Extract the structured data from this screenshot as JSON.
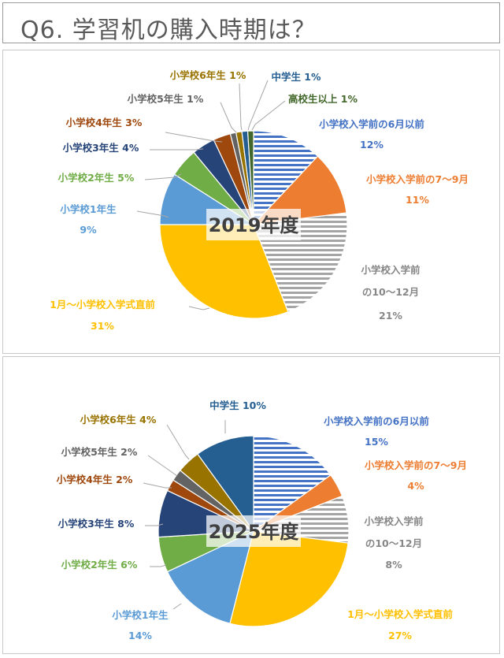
{
  "page_title": "Q6. 学習机の購入時期は？",
  "colors": {
    "apr_early": "#4472c4",
    "jul_sep": "#ed7d31",
    "oct_dec": "#a5a5a5",
    "jan_entrance": "#ffc000",
    "grade1": "#5b9bd5",
    "grade2": "#70ad47",
    "grade3": "#264478",
    "grade4": "#9e480e",
    "grade5": "#636363",
    "grade6": "#997300",
    "middle": "#255e91",
    "highschool": "#43682b"
  },
  "chart_data": [
    {
      "type": "pie",
      "title": "2019年度",
      "slices": [
        {
          "key": "apr_early",
          "label": "小学校入学前の6月以前",
          "value": 12,
          "display": "12%",
          "pattern": true
        },
        {
          "key": "jul_sep",
          "label": "小学校入学前の7～9月",
          "value": 11,
          "display": "11%"
        },
        {
          "key": "oct_dec",
          "label_lines": [
            "小学校入学前",
            "の10～12月"
          ],
          "value": 21,
          "display": "21%",
          "pattern": true
        },
        {
          "key": "jan_entrance",
          "label": "1月～小学校入学式直前",
          "value": 31,
          "display": "31%"
        },
        {
          "key": "grade1",
          "label": "小学校1年生",
          "value": 9,
          "display": "9%"
        },
        {
          "key": "grade2",
          "label": "小学校2年生",
          "value": 5,
          "display": "5%"
        },
        {
          "key": "grade3",
          "label": "小学校3年生",
          "value": 4,
          "display": "4%"
        },
        {
          "key": "grade4",
          "label": "小学校4年生",
          "value": 3,
          "display": "3%"
        },
        {
          "key": "grade5",
          "label": "小学校5年生",
          "value": 1,
          "display": "1%"
        },
        {
          "key": "grade6",
          "label": "小学校6年生",
          "value": 1,
          "display": "1%"
        },
        {
          "key": "middle",
          "label": "中学生",
          "value": 1,
          "display": "1%"
        },
        {
          "key": "highschool",
          "label": "高校生以上",
          "value": 1,
          "display": "1%"
        }
      ]
    },
    {
      "type": "pie",
      "title": "2025年度",
      "slices": [
        {
          "key": "apr_early",
          "label": "小学校入学前の6月以前",
          "value": 15,
          "display": "15%",
          "pattern": true
        },
        {
          "key": "jul_sep",
          "label": "小学校入学前の7～9月",
          "value": 4,
          "display": "4%"
        },
        {
          "key": "oct_dec",
          "label_lines": [
            "小学校入学前",
            "の10～12月"
          ],
          "value": 8,
          "display": "8%",
          "pattern": true
        },
        {
          "key": "jan_entrance",
          "label": "1月～小学校入学式直前",
          "value": 27,
          "display": "27%"
        },
        {
          "key": "grade1",
          "label": "小学校1年生",
          "value": 14,
          "display": "14%"
        },
        {
          "key": "grade2",
          "label": "小学校2年生",
          "value": 6,
          "display": "6%"
        },
        {
          "key": "grade3",
          "label": "小学校3年生",
          "value": 8,
          "display": "8%"
        },
        {
          "key": "grade4",
          "label": "小学校4年生",
          "value": 2,
          "display": "2%"
        },
        {
          "key": "grade5",
          "label": "小学校5年生",
          "value": 2,
          "display": "2%"
        },
        {
          "key": "grade6",
          "label": "小学校6年生",
          "value": 4,
          "display": "4%"
        },
        {
          "key": "middle",
          "label": "中学生",
          "value": 10,
          "display": "10%"
        }
      ]
    }
  ]
}
